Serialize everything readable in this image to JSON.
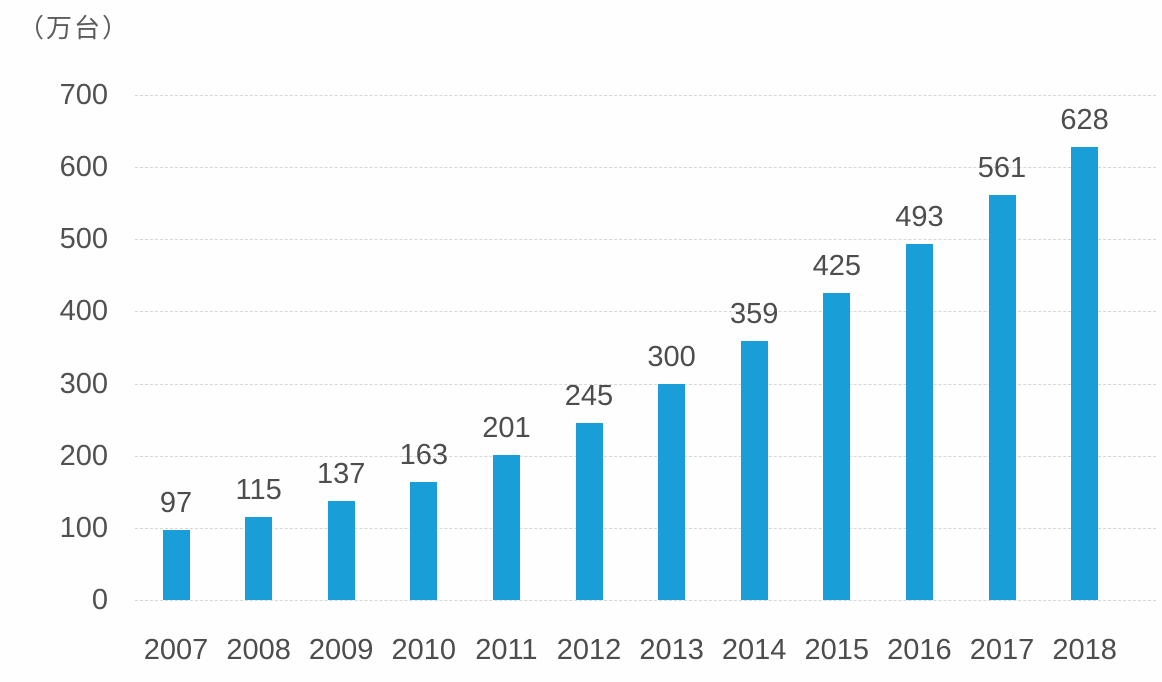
{
  "chart_data": {
    "type": "bar",
    "title": "",
    "unit_label": "（万台）",
    "xlabel": "",
    "ylabel": "万台",
    "categories": [
      "2007",
      "2008",
      "2009",
      "2010",
      "2011",
      "2012",
      "2013",
      "2014",
      "2015",
      "2016",
      "2017",
      "2018"
    ],
    "values": [
      97,
      115,
      137,
      163,
      201,
      245,
      300,
      359,
      425,
      493,
      561,
      628
    ],
    "yticks": [
      0,
      100,
      200,
      300,
      400,
      500,
      600,
      700
    ],
    "ylim": [
      0,
      700
    ],
    "grid": true,
    "legend_position": "none",
    "bar_color": "#1a9ed8",
    "gridline_color": "#d7d7d7",
    "label_color": "#4b4d4f"
  }
}
